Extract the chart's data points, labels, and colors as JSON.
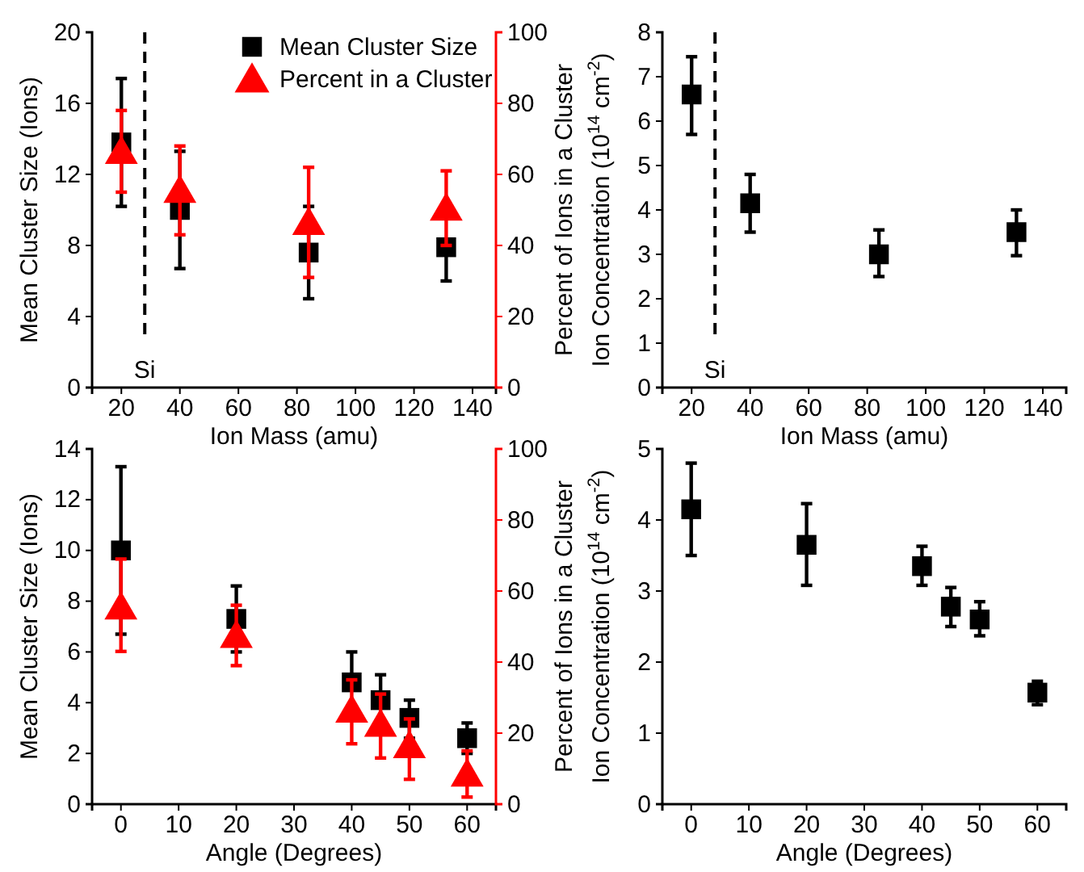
{
  "chart_data": [
    {
      "type": "scatter",
      "xlabel": "Ion Mass (amu)",
      "ylabel": "Mean Cluster Size (Ions)",
      "y2label": "Percent of Ions in a Cluster",
      "x": [
        20,
        40,
        84,
        131
      ],
      "xlim": [
        10,
        148
      ],
      "xticks": [
        20,
        40,
        60,
        80,
        100,
        120,
        140
      ],
      "ylim": [
        0,
        20
      ],
      "yticks": [
        0,
        4,
        8,
        12,
        16,
        20
      ],
      "y2lim": [
        0,
        100
      ],
      "y2ticks": [
        0,
        20,
        40,
        60,
        80,
        100
      ],
      "legend": "top right",
      "ref_lines": [
        {
          "axis": "x",
          "value": 28,
          "label": "Si",
          "line_style": "dashed",
          "color": "#000000"
        }
      ],
      "series": [
        {
          "name": "Mean Cluster Size",
          "color": "#000000",
          "marker": "square",
          "values": [
            13.8,
            10.0,
            7.6,
            7.9
          ],
          "errors": [
            [
              10.2,
              17.4
            ],
            [
              6.7,
              13.3
            ],
            [
              5.0,
              10.2
            ],
            [
              6.0,
              7.9
            ]
          ]
        },
        {
          "name": "Percent in a Cluster",
          "color": "#ff0000",
          "marker": "triangle",
          "axis": "y2",
          "values": [
            67,
            56,
            47,
            51
          ],
          "errors": [
            [
              55,
              78
            ],
            [
              43,
              68
            ],
            [
              31,
              62
            ],
            [
              40,
              61
            ]
          ]
        }
      ]
    },
    {
      "type": "scatter",
      "xlabel": "Ion Mass (amu)",
      "ylabel": "Ion Concentration (10$^{14}$ cm$^{-2}$)",
      "x": [
        20,
        40,
        84,
        131
      ],
      "xlim": [
        10,
        148
      ],
      "xticks": [
        20,
        40,
        60,
        80,
        100,
        120,
        140
      ],
      "ylim": [
        0,
        8
      ],
      "yticks": [
        0,
        1,
        2,
        3,
        4,
        5,
        6,
        7,
        8
      ],
      "ref_lines": [
        {
          "axis": "x",
          "value": 28,
          "label": "Si",
          "line_style": "dashed",
          "color": "#000000"
        }
      ],
      "series": [
        {
          "color": "#000000",
          "marker": "square",
          "values": [
            6.6,
            4.15,
            3.0,
            3.5
          ],
          "errors": [
            [
              5.7,
              7.45
            ],
            [
              3.5,
              4.8
            ],
            [
              2.5,
              3.55
            ],
            [
              2.97,
              4.0
            ]
          ]
        }
      ]
    },
    {
      "type": "scatter",
      "xlabel": "Angle (Degrees)",
      "ylabel": "Mean Cluster Size (Ions)",
      "y2label": "Percent of Ions in a Cluster",
      "x": [
        0,
        20,
        40,
        45,
        50,
        60
      ],
      "xlim": [
        -5,
        65
      ],
      "xticks": [
        0,
        10,
        20,
        30,
        40,
        50,
        60
      ],
      "ylim": [
        0,
        14
      ],
      "yticks": [
        0,
        2,
        4,
        6,
        8,
        10,
        12,
        14
      ],
      "y2lim": [
        0,
        100
      ],
      "y2ticks": [
        0,
        20,
        40,
        60,
        80,
        100
      ],
      "series": [
        {
          "color": "#000000",
          "marker": "square",
          "values": [
            10.0,
            7.3,
            4.8,
            4.1,
            3.4,
            2.6
          ],
          "errors": [
            [
              6.7,
              13.3
            ],
            [
              6.0,
              8.6
            ],
            [
              4.8,
              6.0
            ],
            [
              4.1,
              5.1
            ],
            [
              2.6,
              4.1
            ],
            [
              2.0,
              3.2
            ]
          ]
        },
        {
          "color": "#ff0000",
          "marker": "triangle",
          "axis": "y2",
          "values": [
            56,
            48,
            27,
            23,
            17,
            9
          ],
          "errors": [
            [
              43,
              69
            ],
            [
              39,
              56
            ],
            [
              17,
              35
            ],
            [
              13,
              31
            ],
            [
              7,
              24
            ],
            [
              2,
              15
            ]
          ]
        }
      ]
    },
    {
      "type": "scatter",
      "xlabel": "Angle (Degrees)",
      "ylabel": "Ion Concentration (10$^{14}$ cm$^{-2}$)",
      "x": [
        0,
        20,
        40,
        45,
        50,
        60
      ],
      "xlim": [
        -5,
        65
      ],
      "xticks": [
        0,
        10,
        20,
        30,
        40,
        50,
        60
      ],
      "ylim": [
        0,
        5
      ],
      "yticks": [
        0,
        1,
        2,
        3,
        4,
        5
      ],
      "series": [
        {
          "color": "#000000",
          "marker": "square",
          "values": [
            4.15,
            3.65,
            3.35,
            2.78,
            2.6,
            1.57
          ],
          "errors": [
            [
              3.5,
              4.8
            ],
            [
              3.08,
              4.23
            ],
            [
              3.08,
              3.63
            ],
            [
              2.5,
              3.05
            ],
            [
              2.37,
              2.85
            ],
            [
              1.4,
              1.73
            ]
          ]
        }
      ]
    }
  ]
}
